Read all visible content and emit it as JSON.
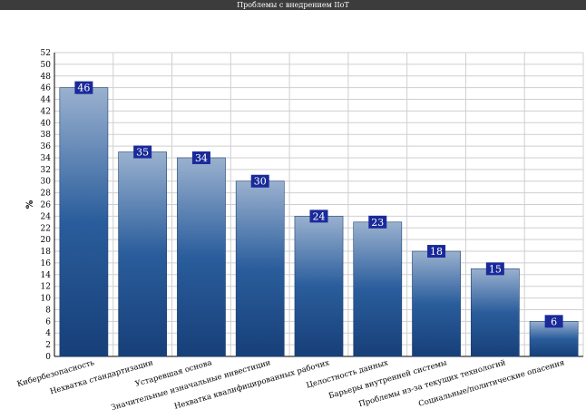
{
  "window": {
    "title": "Проблемы с внедрением IIoT"
  },
  "chart_data": {
    "type": "bar",
    "title": "Проблемы с внедрением IIoT",
    "xlabel": "",
    "ylabel": "%",
    "ylim": [
      0,
      52
    ],
    "ytick_step": 2,
    "grid": true,
    "legend": "none",
    "categories": [
      "Кибербезопасность",
      "Нехватка стандартизации",
      "Устаревшая основа",
      "Значительные изначальные инвестиции",
      "Нехватка квалифицированных рабочих",
      "Целостность данных",
      "Барьеры внутренней системы",
      "Проблемы из-за текущих технологий",
      "Социальные/политические опасения"
    ],
    "values": [
      46,
      35,
      34,
      30,
      24,
      23,
      18,
      15,
      6
    ],
    "colors": {
      "bar_top": "#9ab1cf",
      "bar_mid": "#2a5d9c",
      "bar_bottom": "#173f78",
      "label_bg": "#1a2a9a",
      "grid": "#cfcfcf"
    }
  }
}
